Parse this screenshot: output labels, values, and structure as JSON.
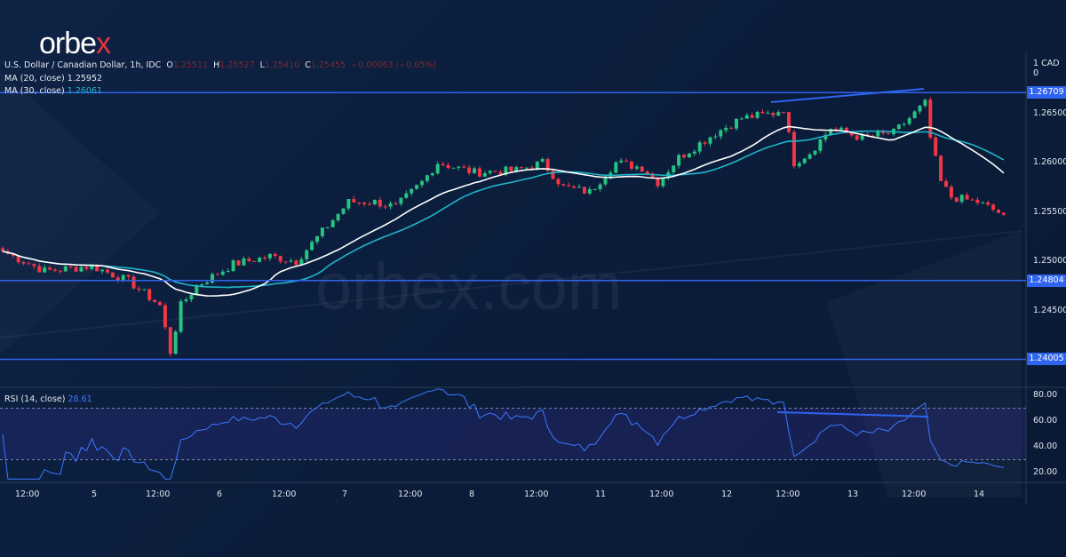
{
  "brand": {
    "logo": "orbex",
    "watermark": "orbex.com"
  },
  "legend": {
    "symbol": "U.S. Dollar / Canadian Dollar, 1h, IDC",
    "o_label": "O",
    "o": "1.25511",
    "h_label": "H",
    "h": "1.25527",
    "l_label": "L",
    "l": "1.25410",
    "c_label": "C",
    "c": "1.25455",
    "change": "−0.00063 (−0.05%)",
    "ma20_label": "MA (20, close)",
    "ma20": "1.25952",
    "ma30_label": "MA (30, close)",
    "ma30": "1.26061",
    "rsi_label": "RSI (14, close)",
    "rsi": "28.61",
    "currency": "1 CAD 0"
  },
  "colors": {
    "up": "#26c281",
    "down": "#f23645",
    "ma20": "#ffffff",
    "ma30": "#1fb6c9",
    "level": "#2f64f0",
    "rsi": "#3b78ff"
  },
  "chart_data": {
    "type": "candlestick",
    "price_ticks": [
      "1.26500",
      "1.26000",
      "1.25500",
      "1.25000",
      "1.24500"
    ],
    "price_tick_values": [
      1.265,
      1.26,
      1.255,
      1.25,
      1.245
    ],
    "levels": [
      "1.26709",
      "1.24804",
      "1.24005"
    ],
    "level_values": [
      1.26709,
      1.24804,
      1.24005
    ],
    "rsi_ticks": [
      "80.00",
      "60.00",
      "40.00",
      "20.00"
    ],
    "rsi_tick_values": [
      80,
      60,
      40,
      20
    ],
    "rsi_band": [
      30,
      70
    ],
    "x_labels": [
      "12:00",
      "5",
      "12:00",
      "6",
      "12:00",
      "7",
      "12:00",
      "8",
      "12:00",
      "11",
      "12:00",
      "12",
      "12:00",
      "13",
      "12:00",
      "14"
    ],
    "price_anchors_hour_close": [
      [
        0,
        1.251
      ],
      [
        8,
        1.249
      ],
      [
        17,
        1.2495
      ],
      [
        24,
        1.248
      ],
      [
        30,
        1.2455
      ],
      [
        32,
        1.2408
      ],
      [
        34,
        1.2455
      ],
      [
        37,
        1.2475
      ],
      [
        44,
        1.2497
      ],
      [
        51,
        1.2505
      ],
      [
        56,
        1.25
      ],
      [
        61,
        1.253
      ],
      [
        66,
        1.256
      ],
      [
        71,
        1.256
      ],
      [
        75,
        1.2555
      ],
      [
        80,
        1.258
      ],
      [
        83,
        1.26
      ],
      [
        90,
        1.259
      ],
      [
        98,
        1.2592
      ],
      [
        103,
        1.26
      ],
      [
        107,
        1.2575
      ],
      [
        112,
        1.257
      ],
      [
        117,
        1.26
      ],
      [
        122,
        1.2595
      ],
      [
        125,
        1.258
      ],
      [
        129,
        1.2605
      ],
      [
        136,
        1.263
      ],
      [
        141,
        1.2645
      ],
      [
        147,
        1.265
      ],
      [
        149,
        1.2655
      ],
      [
        151,
        1.26
      ],
      [
        154,
        1.261
      ],
      [
        158,
        1.2635
      ],
      [
        164,
        1.2625
      ],
      [
        170,
        1.263
      ],
      [
        175,
        1.2655
      ],
      [
        176,
        1.266
      ],
      [
        177,
        1.2625
      ],
      [
        179,
        1.258
      ],
      [
        181,
        1.2565
      ],
      [
        186,
        1.256
      ],
      [
        191,
        1.2547
      ]
    ]
  }
}
